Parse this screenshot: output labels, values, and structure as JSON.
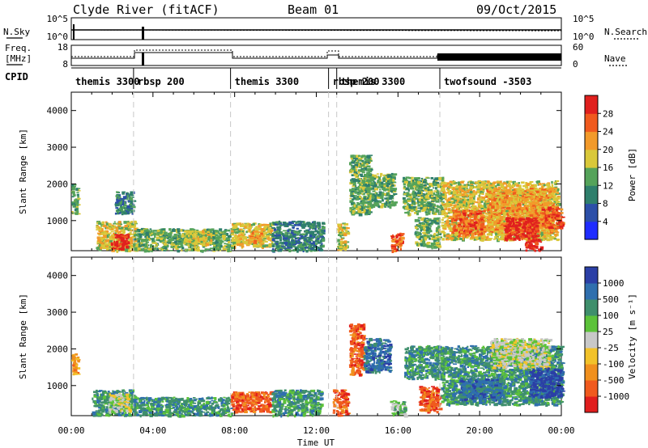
{
  "header": {
    "station": "Clyde River (fitACF)",
    "beam": "Beam 01",
    "date": "09/Oct/2015"
  },
  "top_panels": {
    "nsky_label": "N.Sky",
    "nsky_ticks": [
      "10^5",
      "10^0"
    ],
    "nsearch_label": "N.Search",
    "nsearch_ticks": [
      "10^5",
      "10^0"
    ],
    "freq_label": "Freq.",
    "freq_unit": "[MHz]",
    "freq_ticks": [
      "18",
      "8"
    ],
    "nave_label": "Nave",
    "nave_ticks": [
      "60",
      "0"
    ],
    "cpid_label": "CPID"
  },
  "chart_data": [
    {
      "type": "timeline",
      "name": "cpid",
      "segments": [
        {
          "label": "themis 3300",
          "start": 0.0,
          "end": 3.05
        },
        {
          "label": "rbsp 200",
          "start": 3.05,
          "end": 7.8
        },
        {
          "label": "themis 3300",
          "start": 7.8,
          "end": 12.6
        },
        {
          "label": "rbsp 200",
          "start": 12.6,
          "end": 13.0
        },
        {
          "label": "themis 3300",
          "start": 13.0,
          "end": 18.05
        },
        {
          "label": "twofsound -3503",
          "start": 18.05,
          "end": 24.0
        }
      ]
    },
    {
      "type": "heatmap",
      "name": "power",
      "ylabel": "Slant Range [km]",
      "xlim": [
        0,
        24
      ],
      "ylim": [
        180,
        4500
      ],
      "yticks": [
        1000,
        2000,
        3000,
        4000
      ],
      "colorbar": {
        "label": "Power [dB]",
        "ticks": [
          "4",
          "8",
          "12",
          "16",
          "20",
          "24",
          "28"
        ],
        "colors": [
          "#1f2cff",
          "#2c4fa8",
          "#2f7f6c",
          "#55a35a",
          "#d9c83a",
          "#f29a2a",
          "#f05a1e",
          "#e0201e"
        ]
      },
      "regions": [
        {
          "t0": 0.0,
          "t1": 0.3,
          "r0": 1200,
          "r1": 2000,
          "level": 3
        },
        {
          "t0": 1.2,
          "t1": 3.1,
          "r0": 200,
          "r1": 1000,
          "level": 4
        },
        {
          "t0": 1.9,
          "t1": 2.7,
          "r0": 250,
          "r1": 650,
          "level": 7
        },
        {
          "t0": 2.1,
          "t1": 3.0,
          "r0": 1200,
          "r1": 1800,
          "level": 2
        },
        {
          "t0": 3.0,
          "t1": 7.8,
          "r0": 200,
          "r1": 800,
          "level": 3
        },
        {
          "t0": 5.5,
          "t1": 6.8,
          "r0": 350,
          "r1": 750,
          "level": 4
        },
        {
          "t0": 7.8,
          "t1": 9.8,
          "r0": 300,
          "r1": 950,
          "level": 4
        },
        {
          "t0": 8.6,
          "t1": 9.3,
          "r0": 400,
          "r1": 700,
          "level": 5
        },
        {
          "t0": 9.8,
          "t1": 12.3,
          "r0": 200,
          "r1": 1000,
          "level": 2
        },
        {
          "t0": 13.0,
          "t1": 13.5,
          "r0": 200,
          "r1": 950,
          "level": 4
        },
        {
          "t0": 13.6,
          "t1": 14.6,
          "r0": 1200,
          "r1": 2800,
          "level": 3
        },
        {
          "t0": 14.4,
          "t1": 15.8,
          "r0": 1400,
          "r1": 2300,
          "level": 3
        },
        {
          "t0": 15.6,
          "t1": 16.2,
          "r0": 200,
          "r1": 700,
          "level": 6
        },
        {
          "t0": 16.2,
          "t1": 18.2,
          "r0": 1200,
          "r1": 2200,
          "level": 3
        },
        {
          "t0": 16.8,
          "t1": 18.0,
          "r0": 300,
          "r1": 1100,
          "level": 3
        },
        {
          "t0": 18.1,
          "t1": 23.8,
          "r0": 500,
          "r1": 2100,
          "level": 4
        },
        {
          "t0": 18.6,
          "t1": 20.2,
          "r0": 600,
          "r1": 1300,
          "level": 6
        },
        {
          "t0": 20.3,
          "t1": 23.6,
          "r0": 700,
          "r1": 1900,
          "level": 5
        },
        {
          "t0": 21.2,
          "t1": 22.8,
          "r0": 500,
          "r1": 1100,
          "level": 7
        },
        {
          "t0": 22.2,
          "t1": 23.0,
          "r0": 200,
          "r1": 500,
          "level": 7
        },
        {
          "t0": 23.0,
          "t1": 24.0,
          "r0": 800,
          "r1": 1400,
          "level": 6
        }
      ]
    },
    {
      "type": "heatmap",
      "name": "velocity",
      "ylabel": "Slant Range [km]",
      "xlabel": "Time UT",
      "xlim": [
        0,
        24
      ],
      "ylim": [
        180,
        4500
      ],
      "yticks": [
        1000,
        2000,
        3000,
        4000
      ],
      "xticks": [
        "00:00",
        "04:00",
        "08:00",
        "12:00",
        "16:00",
        "20:00",
        "00:00"
      ],
      "colorbar": {
        "label": "Velocity [m s⁻¹]",
        "ticks": [
          "1000",
          "500",
          "100",
          "25",
          "-25",
          "-100",
          "-500",
          "-1000"
        ],
        "colors": [
          "#2b3fa6",
          "#2f6fae",
          "#3f8f6c",
          "#5cc23a",
          "#c8c8c8",
          "#f2c22a",
          "#f0901e",
          "#f05a1e",
          "#e01e1e"
        ]
      },
      "regions": [
        {
          "t0": 0.0,
          "t1": 0.3,
          "r0": 1300,
          "r1": 1900,
          "level": 6
        },
        {
          "t0": 1.0,
          "t1": 3.1,
          "r0": 200,
          "r1": 900,
          "level": 2
        },
        {
          "t0": 1.8,
          "t1": 2.8,
          "r0": 300,
          "r1": 800,
          "level": 4
        },
        {
          "t0": 3.0,
          "t1": 7.8,
          "r0": 200,
          "r1": 700,
          "level": 2
        },
        {
          "t0": 7.8,
          "t1": 9.8,
          "r0": 300,
          "r1": 850,
          "level": 7
        },
        {
          "t0": 9.8,
          "t1": 12.2,
          "r0": 200,
          "r1": 900,
          "level": 2
        },
        {
          "t0": 12.8,
          "t1": 13.5,
          "r0": 200,
          "r1": 900,
          "level": 7
        },
        {
          "t0": 13.6,
          "t1": 14.3,
          "r0": 1300,
          "r1": 2700,
          "level": 7
        },
        {
          "t0": 14.3,
          "t1": 15.6,
          "r0": 1400,
          "r1": 2300,
          "level": 1
        },
        {
          "t0": 15.6,
          "t1": 16.3,
          "r0": 200,
          "r1": 600,
          "level": 3
        },
        {
          "t0": 16.3,
          "t1": 18.2,
          "r0": 1200,
          "r1": 2100,
          "level": 2
        },
        {
          "t0": 17.0,
          "t1": 18.0,
          "r0": 300,
          "r1": 1000,
          "level": 7
        },
        {
          "t0": 18.1,
          "t1": 24.0,
          "r0": 500,
          "r1": 2100,
          "level": 2
        },
        {
          "t0": 20.5,
          "t1": 23.4,
          "r0": 1500,
          "r1": 2300,
          "level": 4
        },
        {
          "t0": 19.0,
          "t1": 21.0,
          "r0": 600,
          "r1": 1200,
          "level": 1
        },
        {
          "t0": 22.4,
          "t1": 24.0,
          "r0": 700,
          "r1": 1500,
          "level": 0
        }
      ]
    }
  ]
}
